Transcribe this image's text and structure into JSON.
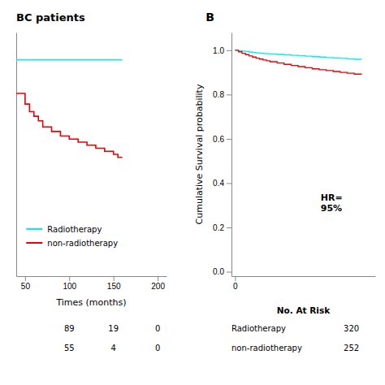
{
  "chart_data": [
    {
      "type": "step",
      "title": "BC patients",
      "x_label": "Times (months)",
      "xlim": [
        40,
        210
      ],
      "ylim": [
        0.855,
        1.015
      ],
      "xticks": [
        50,
        100,
        150,
        200
      ],
      "yticks": [],
      "tick_labels": "x",
      "legend": "bottom",
      "series": [
        {
          "name": "Radiotherapy",
          "color": "#00EFEF",
          "x": [
            40,
            50,
            60,
            70,
            80,
            90,
            100,
            110,
            120,
            130,
            140,
            150,
            155,
            160
          ],
          "values": [
            0.997,
            0.997,
            0.997,
            0.997,
            0.997,
            0.997,
            0.997,
            0.997,
            0.997,
            0.997,
            0.997,
            0.997,
            0.997,
            0.997
          ]
        },
        {
          "name": "non-radiotherapy",
          "color": "#EE0000",
          "x": [
            40,
            50,
            55,
            60,
            65,
            70,
            80,
            90,
            100,
            110,
            120,
            130,
            140,
            150,
            155,
            160
          ],
          "values": [
            0.975,
            0.968,
            0.963,
            0.96,
            0.957,
            0.953,
            0.95,
            0.947,
            0.945,
            0.943,
            0.941,
            0.939,
            0.937,
            0.935,
            0.933,
            0.933
          ]
        }
      ],
      "risk_table": {
        "x": [
          100,
          150,
          200
        ],
        "values": [
          [
            89,
            19,
            0
          ],
          [
            55,
            4,
            0
          ]
        ]
      }
    },
    {
      "type": "step",
      "title": "B",
      "y_label": "Cumulative Survival probability",
      "xlim": [
        -5,
        200
      ],
      "ylim": [
        -0.02,
        1.08
      ],
      "xticks": [
        0
      ],
      "yticks": [
        {
          "value": 0.0,
          "label": "0.0"
        },
        {
          "value": 0.2,
          "label": "0.2"
        },
        {
          "value": 0.4,
          "label": "0.4"
        },
        {
          "value": 0.6,
          "label": "0.6"
        },
        {
          "value": 0.8,
          "label": "0.8"
        },
        {
          "value": 1.0,
          "label": "1.0"
        }
      ],
      "annotation": "HR=\n95%",
      "series": [
        {
          "color": "#00EFEF",
          "x": [
            0,
            5,
            10,
            15,
            20,
            25,
            30,
            35,
            40,
            45,
            50,
            60,
            70,
            80,
            90,
            100,
            110,
            120,
            130,
            140,
            150,
            160,
            170,
            180
          ],
          "values": [
            1.0,
            0.998,
            0.996,
            0.994,
            0.992,
            0.99,
            0.988,
            0.986,
            0.985,
            0.984,
            0.983,
            0.981,
            0.979,
            0.977,
            0.975,
            0.973,
            0.971,
            0.969,
            0.967,
            0.965,
            0.963,
            0.961,
            0.959,
            0.957
          ]
        },
        {
          "color": "#EE0000",
          "x": [
            0,
            5,
            10,
            15,
            20,
            25,
            30,
            35,
            40,
            45,
            50,
            60,
            70,
            80,
            90,
            100,
            110,
            120,
            130,
            140,
            150,
            160,
            170,
            180
          ],
          "values": [
            1.0,
            0.993,
            0.986,
            0.98,
            0.974,
            0.969,
            0.964,
            0.96,
            0.956,
            0.952,
            0.948,
            0.942,
            0.936,
            0.931,
            0.926,
            0.921,
            0.916,
            0.912,
            0.908,
            0.904,
            0.9,
            0.896,
            0.892,
            0.889
          ]
        }
      ],
      "risk_table": {
        "title": "No. At Risk",
        "rows": [
          {
            "name": "Radiotherapy",
            "value": 320
          },
          {
            "name": "non-radiotherapy",
            "value": 252
          }
        ]
      }
    }
  ]
}
